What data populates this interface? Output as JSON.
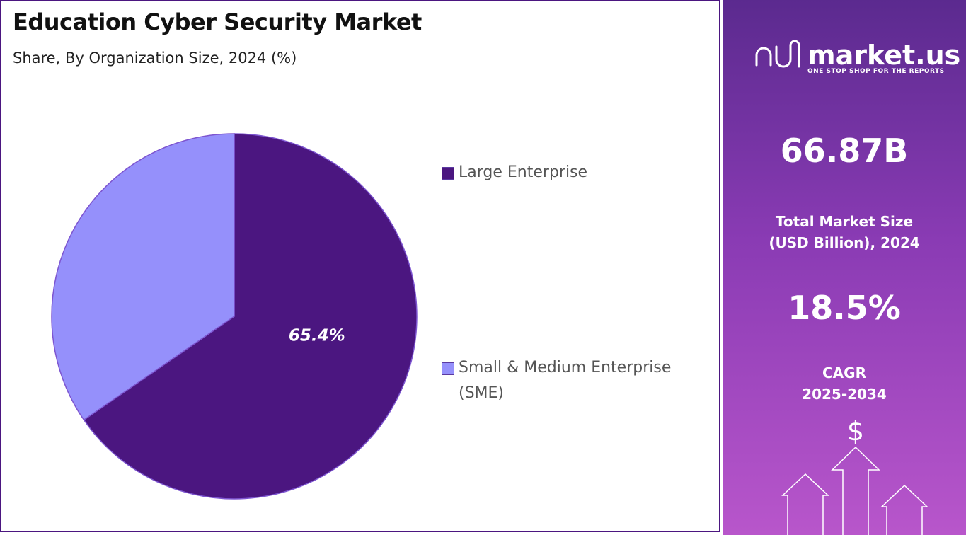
{
  "chart_data": {
    "type": "pie",
    "title": "Education Cyber Security Market",
    "subtitle": "Share, By Organization Size, 2024 (%)",
    "categories": [
      "Large Enterprise",
      "Small & Medium Enterprise (SME)"
    ],
    "values": [
      65.4,
      34.6
    ],
    "value_labels": [
      "65.4%",
      null
    ],
    "colors": [
      "#4b1680",
      "#9590fb"
    ]
  },
  "side_panel": {
    "brand": "market.us",
    "tagline": "ONE STOP SHOP FOR THE REPORTS",
    "market_size": "66.87B",
    "market_size_label": [
      "Total Market Size",
      "(USD Billion), 2024"
    ],
    "cagr": "18.5%",
    "cagr_label": [
      "CAGR",
      "2025-2034"
    ],
    "icon_symbol": "$"
  }
}
